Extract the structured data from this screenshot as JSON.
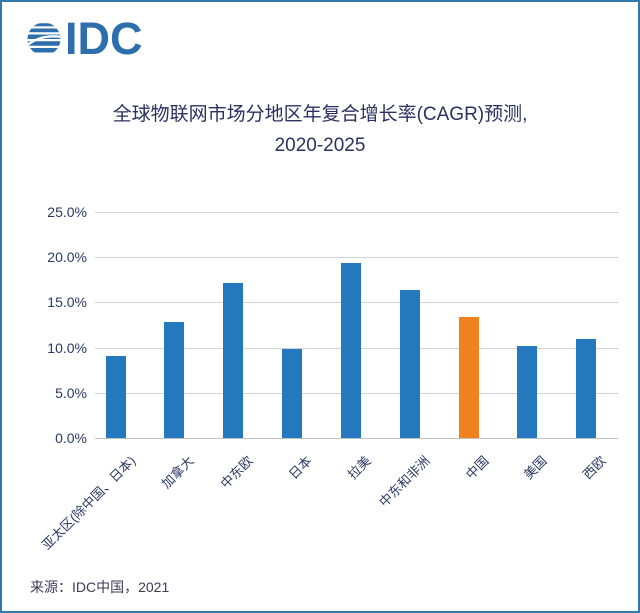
{
  "header": {
    "logo_text": "IDC",
    "logo_color": "#2d6fac"
  },
  "chart": {
    "title_line1": "全球物联网市场分地区年复合增长率(CAGR)预测,",
    "title_line2": "2020-2025"
  },
  "chart_data": {
    "type": "bar",
    "title": "全球物联网市场分地区年复合增长率(CAGR)预测, 2020-2025",
    "categories": [
      "亚太区(除中国、日本)",
      "加拿大",
      "中东欧",
      "日本",
      "拉美",
      "中东和非洲",
      "中国",
      "美国",
      "西欧"
    ],
    "values": [
      9.1,
      12.8,
      17.1,
      9.8,
      19.4,
      16.4,
      13.4,
      10.2,
      11.0
    ],
    "unit": "%",
    "xlabel": "",
    "ylabel": "",
    "ylim": [
      0,
      25
    ],
    "ytick_step": 5,
    "ytick_labels": [
      "0.0%",
      "5.0%",
      "10.0%",
      "15.0%",
      "20.0%",
      "25.0%"
    ],
    "grid": true,
    "legend": false,
    "bar_color": "#2478be",
    "highlight_color": "#f0811f",
    "highlight_index": 6,
    "xtick_rotation_deg": 45
  },
  "footer": {
    "source": "来源：IDC中国，2021"
  }
}
